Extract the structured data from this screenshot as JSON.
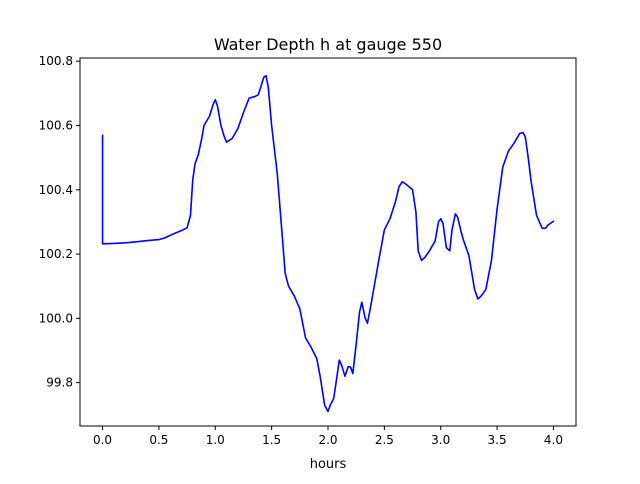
{
  "chart_data": {
    "type": "line",
    "title": "Water Depth h at gauge 550",
    "xlabel": "hours",
    "ylabel": "",
    "xlim": [
      -0.2,
      4.2
    ],
    "ylim": [
      99.665,
      100.81
    ],
    "xticks": [
      0.0,
      0.5,
      1.0,
      1.5,
      2.0,
      2.5,
      3.0,
      3.5,
      4.0
    ],
    "xtick_labels": [
      "0.0",
      "0.5",
      "1.0",
      "1.5",
      "2.0",
      "2.5",
      "3.0",
      "3.5",
      "4.0"
    ],
    "yticks": [
      99.8,
      100.0,
      100.2,
      100.4,
      100.6,
      100.8
    ],
    "ytick_labels": [
      "99.8",
      "100.0",
      "100.2",
      "100.4",
      "100.6",
      "100.8"
    ],
    "grid": false,
    "series": [
      {
        "color": "#0000ff",
        "x": [
          0.0,
          0.0,
          0.1,
          0.2,
          0.3,
          0.4,
          0.5,
          0.55,
          0.6,
          0.65,
          0.7,
          0.75,
          0.78,
          0.8,
          0.82,
          0.85,
          0.88,
          0.9,
          0.95,
          0.98,
          1.0,
          1.02,
          1.05,
          1.08,
          1.1,
          1.15,
          1.2,
          1.25,
          1.3,
          1.35,
          1.38,
          1.4,
          1.43,
          1.45,
          1.47,
          1.5,
          1.55,
          1.6,
          1.62,
          1.65,
          1.7,
          1.75,
          1.8,
          1.85,
          1.9,
          1.93,
          1.97,
          2.0,
          2.02,
          2.05,
          2.08,
          2.1,
          2.12,
          2.15,
          2.18,
          2.2,
          2.22,
          2.25,
          2.28,
          2.3,
          2.33,
          2.35,
          2.38,
          2.4,
          2.45,
          2.5,
          2.55,
          2.6,
          2.63,
          2.66,
          2.7,
          2.75,
          2.78,
          2.8,
          2.83,
          2.86,
          2.9,
          2.95,
          2.98,
          3.0,
          3.02,
          3.05,
          3.08,
          3.1,
          3.13,
          3.15,
          3.18,
          3.2,
          3.25,
          3.3,
          3.33,
          3.36,
          3.4,
          3.45,
          3.5,
          3.55,
          3.6,
          3.65,
          3.7,
          3.73,
          3.75,
          3.78,
          3.8,
          3.85,
          3.9,
          3.93,
          3.95,
          4.0
        ],
        "y": [
          100.57,
          100.232,
          100.233,
          100.235,
          100.238,
          100.242,
          100.245,
          100.25,
          100.258,
          100.266,
          100.273,
          100.282,
          100.32,
          100.43,
          100.48,
          100.51,
          100.56,
          100.6,
          100.63,
          100.665,
          100.68,
          100.66,
          100.6,
          100.565,
          100.548,
          100.56,
          100.59,
          100.64,
          100.685,
          100.69,
          100.695,
          100.715,
          100.75,
          100.755,
          100.72,
          100.6,
          100.45,
          100.23,
          100.14,
          100.1,
          100.07,
          100.03,
          99.94,
          99.91,
          99.875,
          99.82,
          99.73,
          99.71,
          99.73,
          99.75,
          99.82,
          99.87,
          99.855,
          99.82,
          99.85,
          99.848,
          99.828,
          99.92,
          100.02,
          100.05,
          100.0,
          99.985,
          100.04,
          100.08,
          100.18,
          100.275,
          100.31,
          100.365,
          100.41,
          100.425,
          100.415,
          100.4,
          100.33,
          100.21,
          100.18,
          100.19,
          100.21,
          100.24,
          100.3,
          100.31,
          100.295,
          100.22,
          100.21,
          100.275,
          100.325,
          100.315,
          100.27,
          100.245,
          100.195,
          100.09,
          100.06,
          100.07,
          100.09,
          100.18,
          100.34,
          100.47,
          100.52,
          100.545,
          100.575,
          100.578,
          100.565,
          100.49,
          100.43,
          100.32,
          100.28,
          100.28,
          100.29,
          100.302
        ]
      }
    ]
  }
}
